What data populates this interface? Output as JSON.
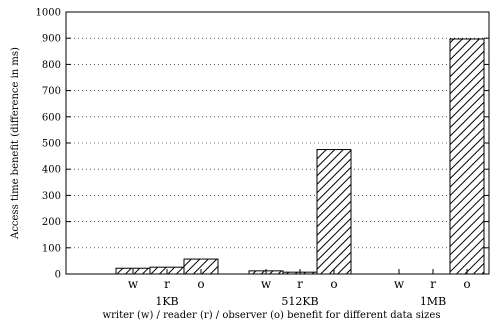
{
  "chart_data": {
    "type": "bar",
    "title": "",
    "xlabel": "writer (w) / reader (r) / observer (o) benefit for different data sizes",
    "ylabel": "Access time benefit (difference in ms)",
    "ylim": [
      0,
      1000
    ],
    "yticks": [
      0,
      100,
      200,
      300,
      400,
      500,
      600,
      700,
      800,
      900,
      1000
    ],
    "grid": true,
    "categories": [
      "1KB",
      "512KB",
      "1MB"
    ],
    "bar_labels": [
      "w",
      "r",
      "o"
    ],
    "groups": [
      {
        "name": "1KB",
        "values": [
          22,
          26,
          57
        ]
      },
      {
        "name": "512KB",
        "values": [
          12,
          7,
          475
        ]
      },
      {
        "name": "1MB",
        "values": [
          0,
          0,
          897
        ]
      }
    ],
    "fill_pattern": "diagonal-hatch"
  }
}
